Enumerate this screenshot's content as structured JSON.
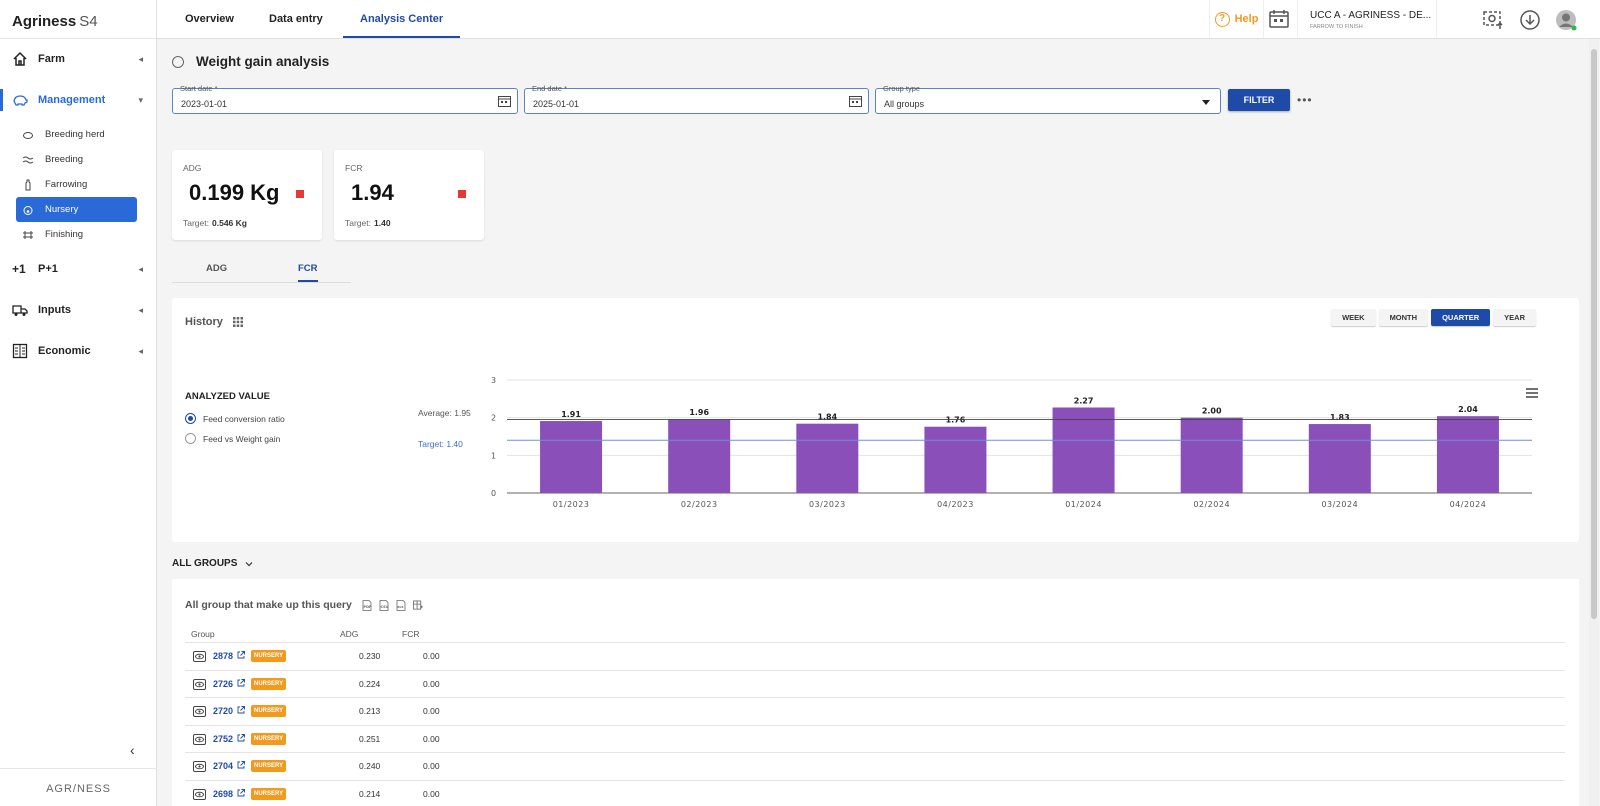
{
  "app": {
    "name": "Agriness",
    "version": "S4",
    "footer_logo": "AGR/NESS"
  },
  "sidebar": {
    "sections": [
      {
        "label": "Farm",
        "icon": "house-icon"
      },
      {
        "label": "Management",
        "icon": "pig-outline-icon"
      },
      {
        "label": "P+1",
        "icon": "plus-one-icon"
      },
      {
        "label": "Inputs",
        "icon": "truck-icon"
      },
      {
        "label": "Economic",
        "icon": "ledger-icon"
      }
    ],
    "management_items": [
      "Breeding herd",
      "Breeding",
      "Farrowing",
      "Nursery",
      "Finishing"
    ],
    "active_item": "Nursery"
  },
  "topbar": {
    "tabs": [
      "Overview",
      "Data entry",
      "Analysis Center"
    ],
    "active_tab": "Analysis Center",
    "help": "Help",
    "farm_name": "UCC A - AGRINESS - DE...",
    "farm_type": "FARROW TO FINISH"
  },
  "page": {
    "title": "Weight gain analysis"
  },
  "filters": {
    "start_label": "Start date *",
    "start_value": "2023-01-01",
    "end_label": "End date *",
    "end_value": "2025-01-01",
    "group_label": "Group type",
    "group_value": "All groups",
    "filter_button": "FILTER"
  },
  "kpis": [
    {
      "label": "ADG",
      "value": "0.199 Kg",
      "target_label": "Target:",
      "target": "0.546 Kg"
    },
    {
      "label": "FCR",
      "value": "1.94",
      "target_label": "Target:",
      "target": "1.40"
    }
  ],
  "metric_tabs": [
    "ADG",
    "FCR"
  ],
  "active_metric_tab": "FCR",
  "history": {
    "title": "History",
    "periods": [
      "WEEK",
      "MONTH",
      "QUARTER",
      "YEAR"
    ],
    "active_period": "QUARTER",
    "analyzed_title": "ANALYZED VALUE",
    "options": [
      "Feed conversion ratio",
      "Feed vs Weight gain"
    ],
    "selected_option": "Feed conversion ratio",
    "average_label": "Average: 1.95",
    "target_label": "Target: 1.40"
  },
  "chart_data": {
    "type": "bar",
    "categories": [
      "01/2023",
      "02/2023",
      "03/2023",
      "04/2023",
      "01/2024",
      "02/2024",
      "03/2024",
      "04/2024"
    ],
    "values": [
      1.91,
      1.96,
      1.84,
      1.76,
      2.27,
      2.0,
      1.83,
      2.04
    ],
    "data_labels": [
      "1.91",
      "1.96",
      "1.84",
      "1.76",
      "2.27",
      "2.00",
      "1.83",
      "2.04"
    ],
    "ylim": [
      0,
      3
    ],
    "yticks": [
      "0",
      "1",
      "2",
      "3"
    ],
    "average": 1.95,
    "target": 1.4,
    "bar_color": "#8a4fb8",
    "target_color": "#6c8fe0",
    "grid": true
  },
  "groups": {
    "section_label": "ALL GROUPS",
    "table_title": "All group that make up this query",
    "export_icons": [
      "pdf-icon",
      "csv-icon",
      "xlsx-icon",
      "columns-icon"
    ],
    "columns": [
      "Group",
      "ADG",
      "FCR"
    ],
    "badge": "NURSERY",
    "rows": [
      {
        "group": "2878",
        "adg": "0.230",
        "fcr": "0.00"
      },
      {
        "group": "2726",
        "adg": "0.224",
        "fcr": "0.00"
      },
      {
        "group": "2720",
        "adg": "0.213",
        "fcr": "0.00"
      },
      {
        "group": "2752",
        "adg": "0.251",
        "fcr": "0.00"
      },
      {
        "group": "2704",
        "adg": "0.240",
        "fcr": "0.00"
      },
      {
        "group": "2698",
        "adg": "0.214",
        "fcr": "0.00"
      }
    ]
  }
}
